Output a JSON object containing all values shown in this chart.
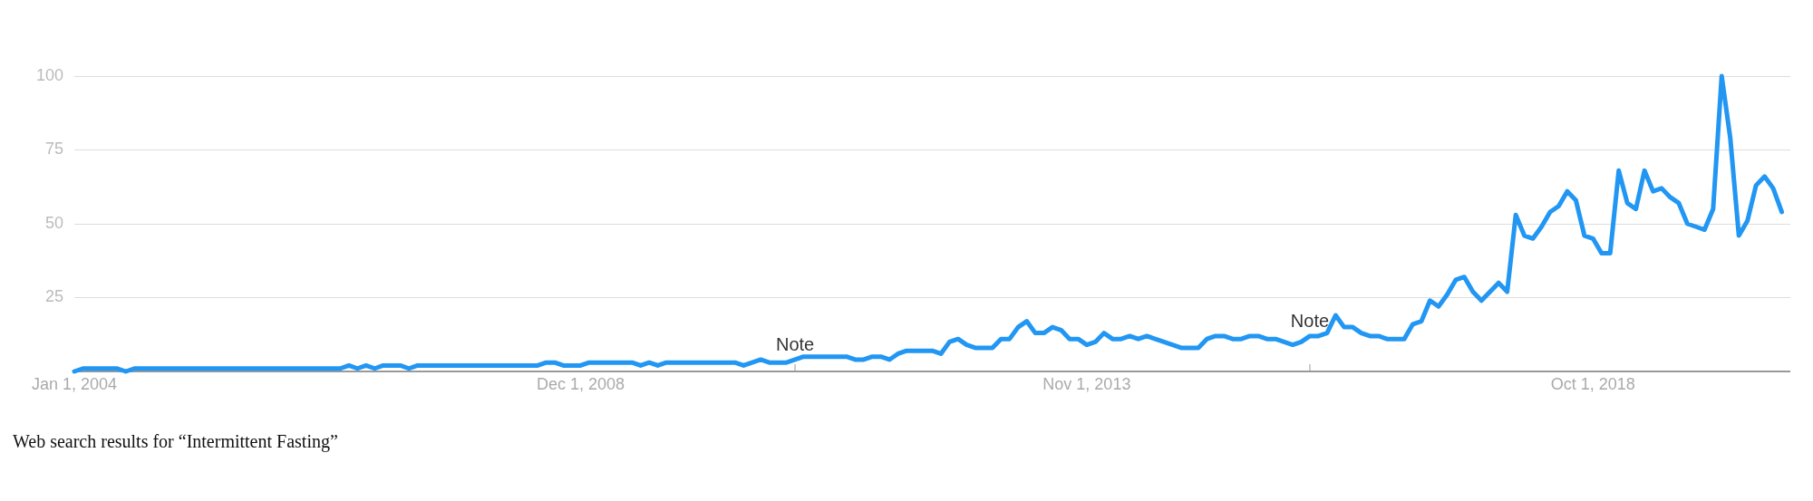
{
  "chart_data": {
    "type": "line",
    "grid": "y",
    "legend": false,
    "marker": "none",
    "line_style": "solid",
    "xlim": [
      "2004-01",
      "2020-09"
    ],
    "xticks": [
      {
        "value": "2004-01-01",
        "label": "Jan 1, 2004"
      },
      {
        "value": "2008-12-01",
        "label": "Dec 1, 2008"
      },
      {
        "value": "2013-11-01",
        "label": "Nov 1, 2013"
      },
      {
        "value": "2018-10-01",
        "label": "Oct 1, 2018"
      }
    ],
    "ylim": [
      0,
      100
    ],
    "yticks": [
      {
        "value": 0,
        "label": null
      },
      25,
      50,
      75,
      100
    ],
    "annotations": [
      {
        "text": "Note",
        "x": "2011-01",
        "y": 4
      },
      {
        "text": "Note",
        "x": "2016-01",
        "y": 12
      },
      "Web search results for “Intermittent Fasting”"
    ],
    "series": [
      {
        "color": "#2196f3",
        "x": [
          "2004-01",
          "2004-02",
          "2004-06",
          "2004-07",
          "2004-08",
          "2006-08",
          "2006-09",
          "2006-10",
          "2006-11",
          "2006-12",
          "2007-01",
          "2007-03",
          "2007-04",
          "2007-05",
          "2008-07",
          "2008-08",
          "2008-09",
          "2008-10",
          "2008-12",
          "2009-01",
          "2009-06",
          "2009-07",
          "2009-08",
          "2009-09",
          "2009-10",
          "2010-06",
          "2010-07",
          "2010-08",
          "2010-09",
          "2010-10",
          "2010-12",
          "2011-01",
          "2011-02",
          "2011-07",
          "2011-08",
          "2011-09",
          "2011-10",
          "2011-11",
          "2011-12",
          "2012-01",
          "2012-02",
          "2012-05",
          "2012-06",
          "2012-07",
          "2012-08",
          "2012-09",
          "2012-10",
          "2012-12",
          "2013-01",
          "2013-02",
          "2013-03",
          "2013-04",
          "2013-05",
          "2013-06",
          "2013-07",
          "2013-08",
          "2013-09",
          "2013-10",
          "2013-11",
          "2013-12",
          "2014-01",
          "2014-02",
          "2014-03",
          "2014-04",
          "2014-05",
          "2014-06",
          "2014-10",
          "2014-12",
          "2015-01",
          "2015-02",
          "2015-03",
          "2015-04",
          "2015-05",
          "2015-06",
          "2015-07",
          "2015-08",
          "2015-09",
          "2015-10",
          "2015-11",
          "2015-12",
          "2016-01",
          "2016-02",
          "2016-03",
          "2016-04",
          "2016-05",
          "2016-06",
          "2016-07",
          "2016-08",
          "2016-09",
          "2016-10",
          "2016-12",
          "2017-01",
          "2017-02",
          "2017-03",
          "2017-04",
          "2017-05",
          "2017-06",
          "2017-07",
          "2017-08",
          "2017-09",
          "2017-10",
          "2017-11",
          "2017-12",
          "2018-01",
          "2018-02",
          "2018-03",
          "2018-04",
          "2018-05",
          "2018-06",
          "2018-07",
          "2018-08",
          "2018-09",
          "2018-10",
          "2018-11",
          "2018-12",
          "2019-01",
          "2019-02",
          "2019-03",
          "2019-04",
          "2019-05",
          "2019-06",
          "2019-07",
          "2019-08",
          "2019-09",
          "2019-10",
          "2019-11",
          "2019-12",
          "2020-01",
          "2020-02",
          "2020-03",
          "2020-04",
          "2020-05",
          "2020-06",
          "2020-07",
          "2020-08"
        ],
        "values": [
          0,
          1,
          1,
          0,
          1,
          1,
          2,
          1,
          2,
          1,
          2,
          2,
          1,
          2,
          2,
          3,
          3,
          2,
          2,
          3,
          3,
          2,
          3,
          2,
          3,
          3,
          2,
          3,
          4,
          3,
          3,
          4,
          5,
          5,
          4,
          4,
          5,
          5,
          4,
          6,
          7,
          7,
          6,
          10,
          11,
          9,
          8,
          8,
          11,
          11,
          15,
          17,
          13,
          13,
          15,
          14,
          11,
          11,
          9,
          10,
          13,
          11,
          11,
          12,
          11,
          12,
          8,
          8,
          11,
          12,
          12,
          11,
          11,
          12,
          12,
          11,
          11,
          10,
          9,
          10,
          12,
          12,
          13,
          19,
          15,
          15,
          13,
          12,
          12,
          11,
          11,
          16,
          17,
          24,
          22,
          26,
          31,
          32,
          27,
          24,
          27,
          30,
          27,
          53,
          46,
          45,
          49,
          54,
          56,
          61,
          58,
          46,
          45,
          40,
          40,
          68,
          57,
          55,
          68,
          61,
          62,
          59,
          57,
          50,
          49,
          48,
          55,
          100,
          79,
          46,
          51,
          63,
          66,
          62,
          54
        ]
      }
    ]
  }
}
